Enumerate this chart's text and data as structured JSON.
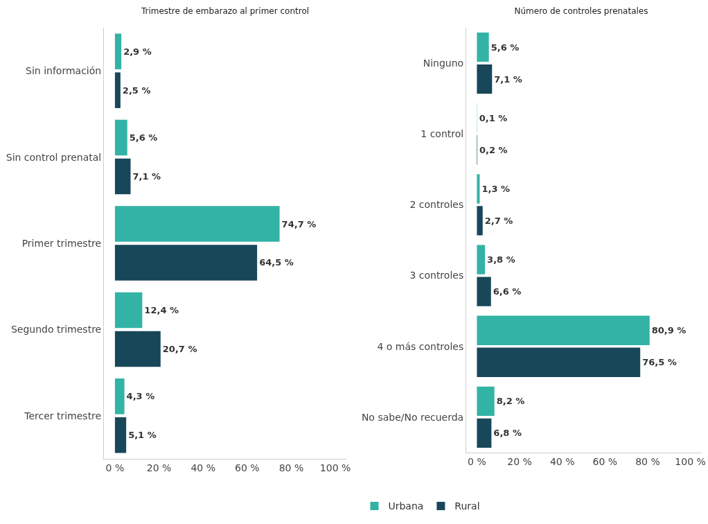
{
  "chart_data": [
    {
      "type": "bar",
      "orientation": "horizontal",
      "title": "Trimestre de embarazo al primer control",
      "categories": [
        "Sin información",
        "Sin control prenatal",
        "Primer trimestre",
        "Segundo trimestre",
        "Tercer trimestre"
      ],
      "series": [
        {
          "color": "#33b3a6",
          "values": [
            2.9,
            5.6,
            74.7,
            12.4,
            4.3
          ],
          "value_labels": [
            "2,9 %",
            "5,6 %",
            "74,7 %",
            "12,4 %",
            "4,3 %"
          ]
        },
        {
          "color": "#18475a",
          "values": [
            2.5,
            7.1,
            64.5,
            20.7,
            5.1
          ],
          "value_labels": [
            "2,5 %",
            "7,1 %",
            "64,5 %",
            "20,7 %",
            "5,1 %"
          ]
        }
      ],
      "xlim": [
        -5,
        105
      ],
      "xticks": [
        {
          "value": 0,
          "label": "0 %"
        },
        {
          "value": 20,
          "label": "20 %"
        },
        {
          "value": 40,
          "label": "40 %"
        },
        {
          "value": 60,
          "label": "60 %"
        },
        {
          "value": 80,
          "label": "80 %"
        },
        {
          "value": 100,
          "label": "100 %"
        }
      ],
      "grid": false,
      "legend": false
    },
    {
      "type": "bar",
      "orientation": "horizontal",
      "title": "Número de controles prenatales",
      "categories": [
        "Ninguno",
        "1 control",
        "2 controles",
        "3 controles",
        "4 o más controles",
        "No sabe/No recuerda"
      ],
      "series": [
        {
          "name": "Urbana",
          "color": "#33b3a6",
          "values": [
            5.6,
            0.1,
            1.3,
            3.8,
            80.9,
            8.2
          ],
          "value_labels": [
            "5,6 %",
            "0,1 %",
            "1,3 %",
            "3,8 %",
            "80,9 %",
            "8,2 %"
          ]
        },
        {
          "name": "Rural",
          "color": "#18475a",
          "values": [
            7.1,
            0.2,
            2.7,
            6.6,
            76.5,
            6.8
          ],
          "value_labels": [
            "7,1 %",
            "0,2 %",
            "2,7 %",
            "6,6 %",
            "76,5 %",
            "6,8 %"
          ]
        }
      ],
      "xlim": [
        -5,
        105
      ],
      "xticks": [
        {
          "value": 0,
          "label": "0 %"
        },
        {
          "value": 20,
          "label": "20 %"
        },
        {
          "value": 40,
          "label": "40 %"
        },
        {
          "value": 60,
          "label": "60 %"
        },
        {
          "value": 80,
          "label": "80 %"
        },
        {
          "value": 100,
          "label": "100 %"
        }
      ],
      "grid": false,
      "legend": "bottom"
    }
  ]
}
